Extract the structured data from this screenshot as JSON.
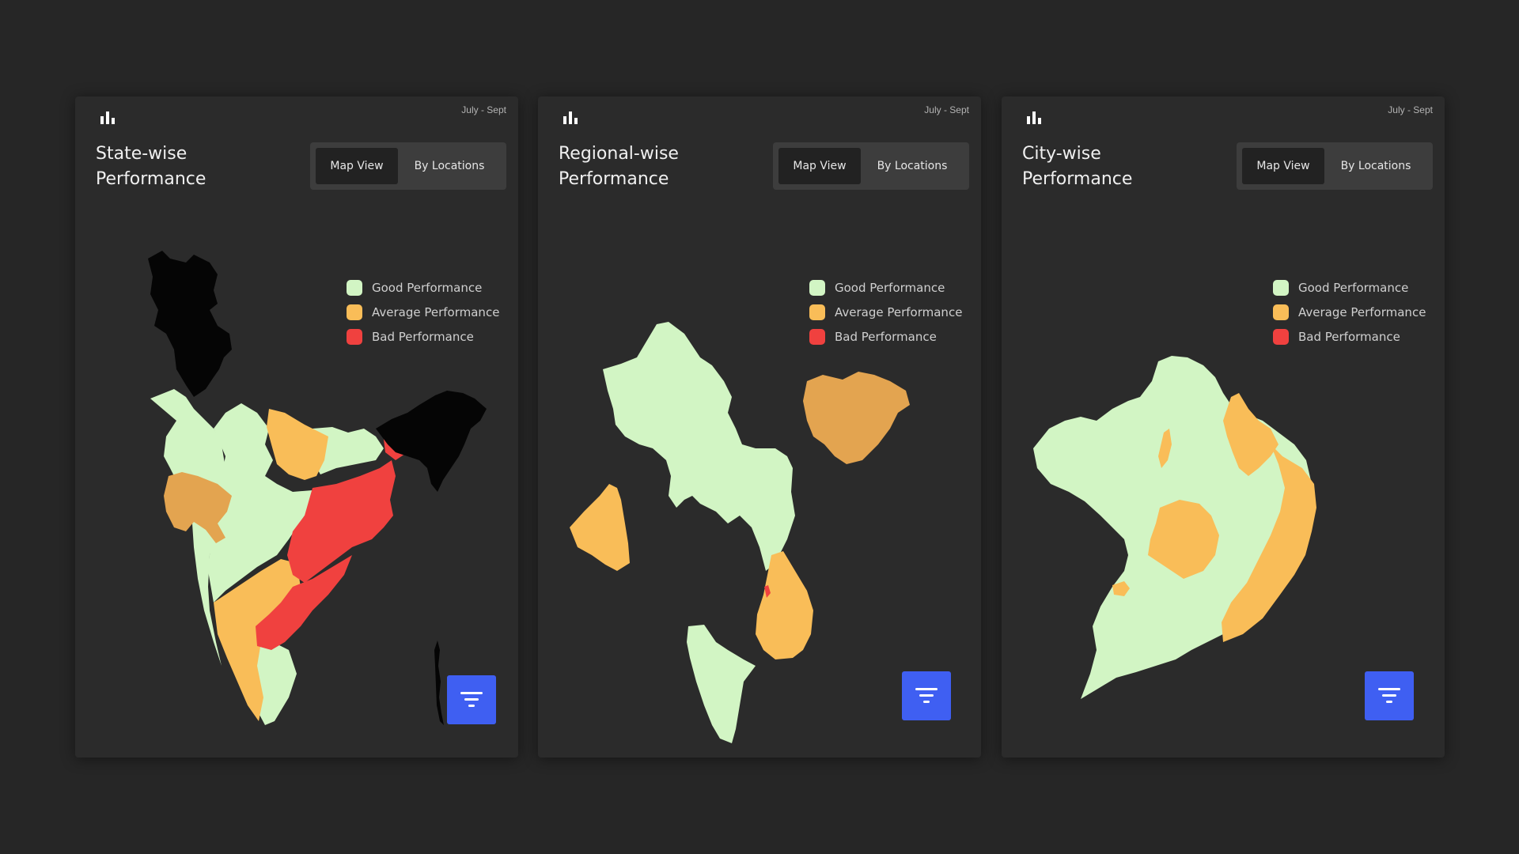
{
  "colors": {
    "good": "#d2f5c4",
    "average": "#f9bd58",
    "average_dark": "#e3a450",
    "bad": "#f0413f",
    "no_data": "#050505",
    "filter_button": "#3f5ff2",
    "card_bg": "#2b2b2b",
    "page_bg": "#262626"
  },
  "cards": [
    {
      "icon": "bar-chart-icon",
      "period": "July - Sept",
      "title_line1": "State-wise",
      "title_line2": "Performance",
      "toggle": {
        "map_view": "Map View",
        "by_locations": "By Locations",
        "selected": "Map View"
      },
      "legend": [
        {
          "label": "Good Performance",
          "color": "#d2f5c4"
        },
        {
          "label": "Average Performance",
          "color": "#f9bd58"
        },
        {
          "label": "Bad Performance",
          "color": "#f0413f"
        }
      ],
      "filter_icon": "filter-icon"
    },
    {
      "icon": "bar-chart-icon",
      "period": "July - Sept",
      "title_line1": "Regional-wise",
      "title_line2": "Performance",
      "toggle": {
        "map_view": "Map View",
        "by_locations": "By Locations",
        "selected": "Map View"
      },
      "legend": [
        {
          "label": "Good Performance",
          "color": "#d2f5c4"
        },
        {
          "label": "Average Performance",
          "color": "#f9bd58"
        },
        {
          "label": "Bad Performance",
          "color": "#f0413f"
        }
      ],
      "filter_icon": "filter-icon"
    },
    {
      "icon": "bar-chart-icon",
      "period": "July - Sept",
      "title_line1": "City-wise",
      "title_line2": "Performance",
      "toggle": {
        "map_view": "Map View",
        "by_locations": "By Locations",
        "selected": "Map View"
      },
      "legend": [
        {
          "label": "Good Performance",
          "color": "#d2f5c4"
        },
        {
          "label": "Average Performance",
          "color": "#f9bd58"
        },
        {
          "label": "Bad Performance",
          "color": "#f0413f"
        }
      ],
      "filter_icon": "filter-icon"
    }
  ]
}
